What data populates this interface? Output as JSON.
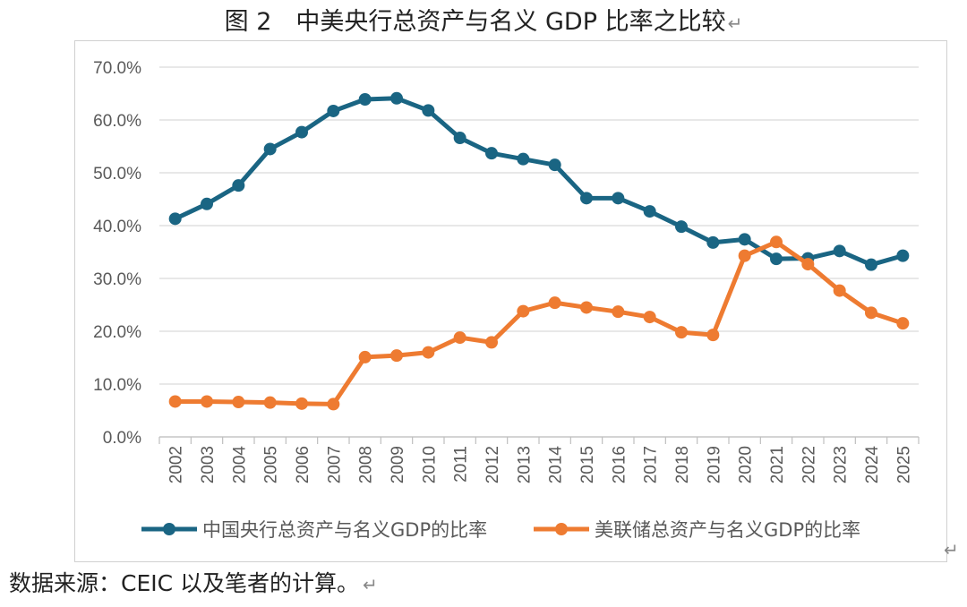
{
  "figure_title": "图 2　中美央行总资产与名义 GDP 比率之比较",
  "return_mark": "↵",
  "source_note": "数据来源：CEIC 以及笔者的计算。",
  "colors": {
    "china": "#1a6583",
    "us": "#ee7b31",
    "grid": "#d9d9d9",
    "axis_text": "#595959"
  },
  "chart_data": {
    "type": "line",
    "categories": [
      "2002",
      "2003",
      "2004",
      "2005",
      "2006",
      "2007",
      "2008",
      "2009",
      "2010",
      "2011",
      "2012",
      "2013",
      "2014",
      "2015",
      "2016",
      "2017",
      "2018",
      "2019",
      "2020",
      "2021",
      "2022",
      "2023",
      "2024",
      "2025"
    ],
    "series": [
      {
        "name": "中国央行总资产与名义GDP的比率",
        "values": [
          41.3,
          44.1,
          47.6,
          54.5,
          57.7,
          61.7,
          63.9,
          64.1,
          61.8,
          56.6,
          53.7,
          52.6,
          51.5,
          45.2,
          45.2,
          42.7,
          39.8,
          36.8,
          37.4,
          33.7,
          33.8,
          35.2,
          32.6,
          34.3
        ]
      },
      {
        "name": "美联储总资产与名义GDP的比率",
        "values": [
          6.7,
          6.7,
          6.6,
          6.5,
          6.3,
          6.2,
          15.1,
          15.4,
          16.0,
          18.8,
          17.9,
          23.8,
          25.4,
          24.5,
          23.7,
          22.7,
          19.8,
          19.3,
          34.3,
          36.9,
          32.7,
          27.7,
          23.5,
          21.5
        ]
      }
    ],
    "y_ticks": [
      "0.0%",
      "10.0%",
      "20.0%",
      "30.0%",
      "40.0%",
      "50.0%",
      "60.0%",
      "70.0%"
    ],
    "ylim": [
      0,
      70
    ],
    "grid": true,
    "legend_position": "bottom"
  }
}
